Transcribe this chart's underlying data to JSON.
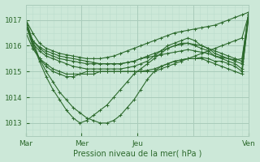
{
  "bg_color": "#cce8d8",
  "plot_bg_color": "#cce8d8",
  "line_color": "#2d6a2d",
  "grid_major_color": "#aaccbb",
  "grid_minor_color": "#bbddcc",
  "tick_color": "#2d6a2d",
  "label_color": "#2d6a2d",
  "xlabel": "Pression niveau de la mer( hPa )",
  "ylabel_ticks": [
    1013,
    1014,
    1015,
    1016,
    1017
  ],
  "xlim": [
    0,
    96
  ],
  "ylim": [
    1012.5,
    1017.6
  ],
  "day_labels": [
    "Mar",
    "Mer",
    "Jeu",
    "Ven"
  ],
  "day_positions": [
    0,
    24,
    48,
    72,
    96
  ],
  "series": [
    [
      1017.0,
      1016.5,
      1016.1,
      1015.9,
      1015.8,
      1015.7,
      1015.65,
      1015.6,
      1015.55,
      1015.5,
      1015.5,
      1015.5,
      1015.55,
      1015.6,
      1015.7,
      1015.8,
      1015.9,
      1016.0,
      1016.1,
      1016.2,
      1016.3,
      1016.4,
      1016.5,
      1016.55,
      1016.6,
      1016.65,
      1016.7,
      1016.75,
      1016.8,
      1016.9,
      1017.0,
      1017.1,
      1017.2,
      1017.3
    ],
    [
      1017.0,
      1016.2,
      1015.5,
      1015.0,
      1014.6,
      1014.2,
      1013.9,
      1013.6,
      1013.4,
      1013.2,
      1013.1,
      1013.0,
      1013.0,
      1013.1,
      1013.3,
      1013.6,
      1013.9,
      1014.3,
      1014.7,
      1015.0,
      1015.2,
      1015.3,
      1015.4,
      1015.45,
      1015.5,
      1015.5,
      1015.55,
      1015.5,
      1015.4,
      1015.4,
      1015.3,
      1015.2,
      1015.0,
      1017.1
    ],
    [
      1017.0,
      1016.1,
      1015.4,
      1014.8,
      1014.3,
      1013.9,
      1013.5,
      1013.2,
      1013.0,
      1013.1,
      1013.3,
      1013.5,
      1013.7,
      1014.0,
      1014.3,
      1014.6,
      1014.9,
      1015.1,
      1015.3,
      1015.5,
      1015.7,
      1015.9,
      1016.0,
      1016.1,
      1016.1,
      1016.0,
      1015.9,
      1015.8,
      1015.6,
      1015.5,
      1015.4,
      1015.3,
      1015.1,
      1017.2
    ],
    [
      1016.8,
      1016.0,
      1015.5,
      1015.2,
      1015.0,
      1014.9,
      1014.8,
      1014.8,
      1014.9,
      1015.0,
      1015.0,
      1015.0,
      1015.0,
      1015.0,
      1015.0,
      1015.0,
      1015.0,
      1015.0,
      1015.05,
      1015.1,
      1015.2,
      1015.3,
      1015.4,
      1015.45,
      1015.5,
      1015.5,
      1015.5,
      1015.4,
      1015.3,
      1015.2,
      1015.1,
      1015.0,
      1014.9,
      1017.2
    ],
    [
      1016.5,
      1015.9,
      1015.5,
      1015.3,
      1015.1,
      1015.0,
      1014.9,
      1014.9,
      1014.9,
      1014.9,
      1014.9,
      1015.0,
      1015.0,
      1015.0,
      1015.0,
      1015.0,
      1015.0,
      1015.0,
      1015.0,
      1015.0,
      1015.1,
      1015.2,
      1015.3,
      1015.4,
      1015.5,
      1015.6,
      1015.7,
      1015.8,
      1015.9,
      1016.0,
      1016.1,
      1016.2,
      1016.3,
      1017.2
    ],
    [
      1016.8,
      1016.1,
      1015.8,
      1015.6,
      1015.5,
      1015.4,
      1015.3,
      1015.2,
      1015.15,
      1015.1,
      1015.1,
      1015.1,
      1015.1,
      1015.1,
      1015.1,
      1015.15,
      1015.2,
      1015.3,
      1015.4,
      1015.6,
      1015.8,
      1016.0,
      1016.1,
      1016.2,
      1016.3,
      1016.2,
      1016.0,
      1015.9,
      1015.7,
      1015.6,
      1015.5,
      1015.4,
      1015.3,
      1017.3
    ],
    [
      1016.8,
      1016.2,
      1015.9,
      1015.7,
      1015.6,
      1015.5,
      1015.45,
      1015.4,
      1015.35,
      1015.3,
      1015.3,
      1015.3,
      1015.3,
      1015.3,
      1015.3,
      1015.35,
      1015.4,
      1015.5,
      1015.6,
      1015.7,
      1015.8,
      1015.9,
      1016.0,
      1016.05,
      1016.1,
      1016.05,
      1016.0,
      1015.9,
      1015.8,
      1015.7,
      1015.6,
      1015.5,
      1015.4,
      1017.3
    ],
    [
      1016.8,
      1016.2,
      1015.95,
      1015.8,
      1015.7,
      1015.6,
      1015.55,
      1015.5,
      1015.45,
      1015.4,
      1015.35,
      1015.3,
      1015.3,
      1015.3,
      1015.3,
      1015.35,
      1015.4,
      1015.5,
      1015.55,
      1015.6,
      1015.65,
      1015.7,
      1015.75,
      1015.8,
      1015.85,
      1015.8,
      1015.75,
      1015.7,
      1015.6,
      1015.55,
      1015.5,
      1015.45,
      1015.5,
      1017.2
    ]
  ]
}
